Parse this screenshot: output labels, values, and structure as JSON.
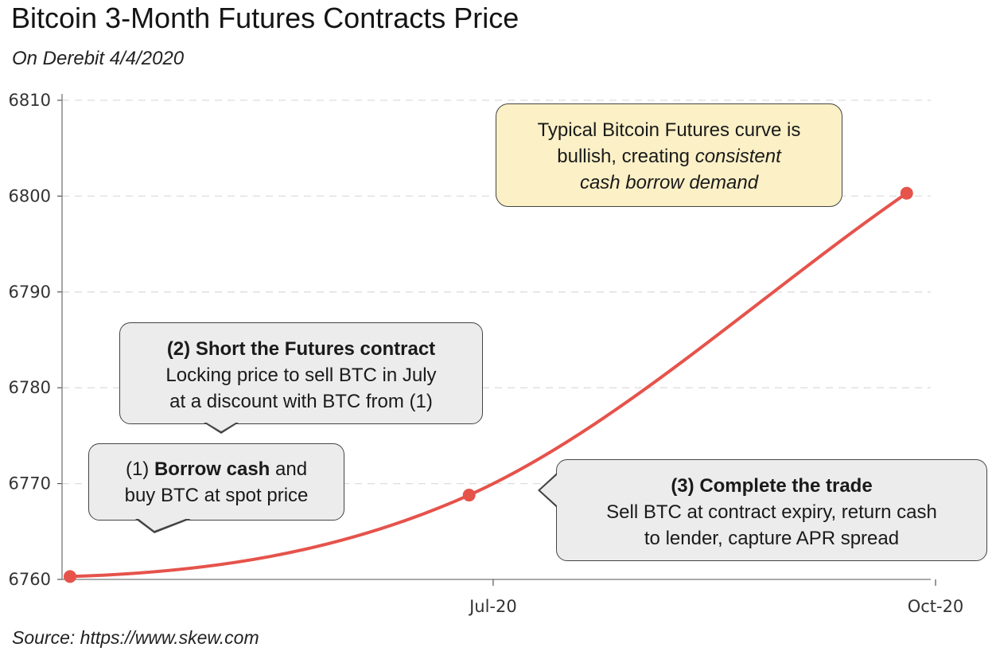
{
  "chart_data": {
    "type": "line",
    "title": "Bitcoin 3-Month Futures Contracts Price",
    "subtitle": "On Derebit 4/4/2020",
    "source": "Source: https://www.skew.com",
    "xlabel": "",
    "ylabel": "",
    "x_tick_labels": [
      "Jul-20",
      "Oct-20"
    ],
    "y_ticks": [
      6760,
      6770,
      6780,
      6790,
      6800,
      6810
    ],
    "ylim": [
      6760,
      6810
    ],
    "grid": "horizontal dashed",
    "series": [
      {
        "color": "#e5534b",
        "points": [
          {
            "x": "2020-04-04",
            "y": 6760.3
          },
          {
            "x": "2020-06-26",
            "y": 6768.8
          },
          {
            "x": "2020-09-25",
            "y": 6800.3
          }
        ]
      }
    ],
    "annotations": {
      "step1": {
        "prefix": "(1) ",
        "bold": "Borrow cash",
        "suffix": " and",
        "line2": "buy BTC at spot price"
      },
      "step2": {
        "heading": "(2) Short the Futures contract",
        "line2": "Locking price to sell BTC in July",
        "line3": "at a discount with BTC from (1)"
      },
      "step3": {
        "heading": "(3) Complete the trade",
        "line2": "Sell BTC at contract expiry, return cash",
        "line3": "to lender, capture APR spread"
      },
      "curve_note": {
        "line1": "Typical Bitcoin Futures curve is",
        "line2_plain": "bullish, creating ",
        "line2_italic": "consistent",
        "line3_italic": "cash borrow demand"
      }
    }
  },
  "colors": {
    "line": "#e5534b",
    "callout_gray": "#ececec",
    "callout_yellow": "#fbf0c6",
    "grid": "#dddddd"
  }
}
